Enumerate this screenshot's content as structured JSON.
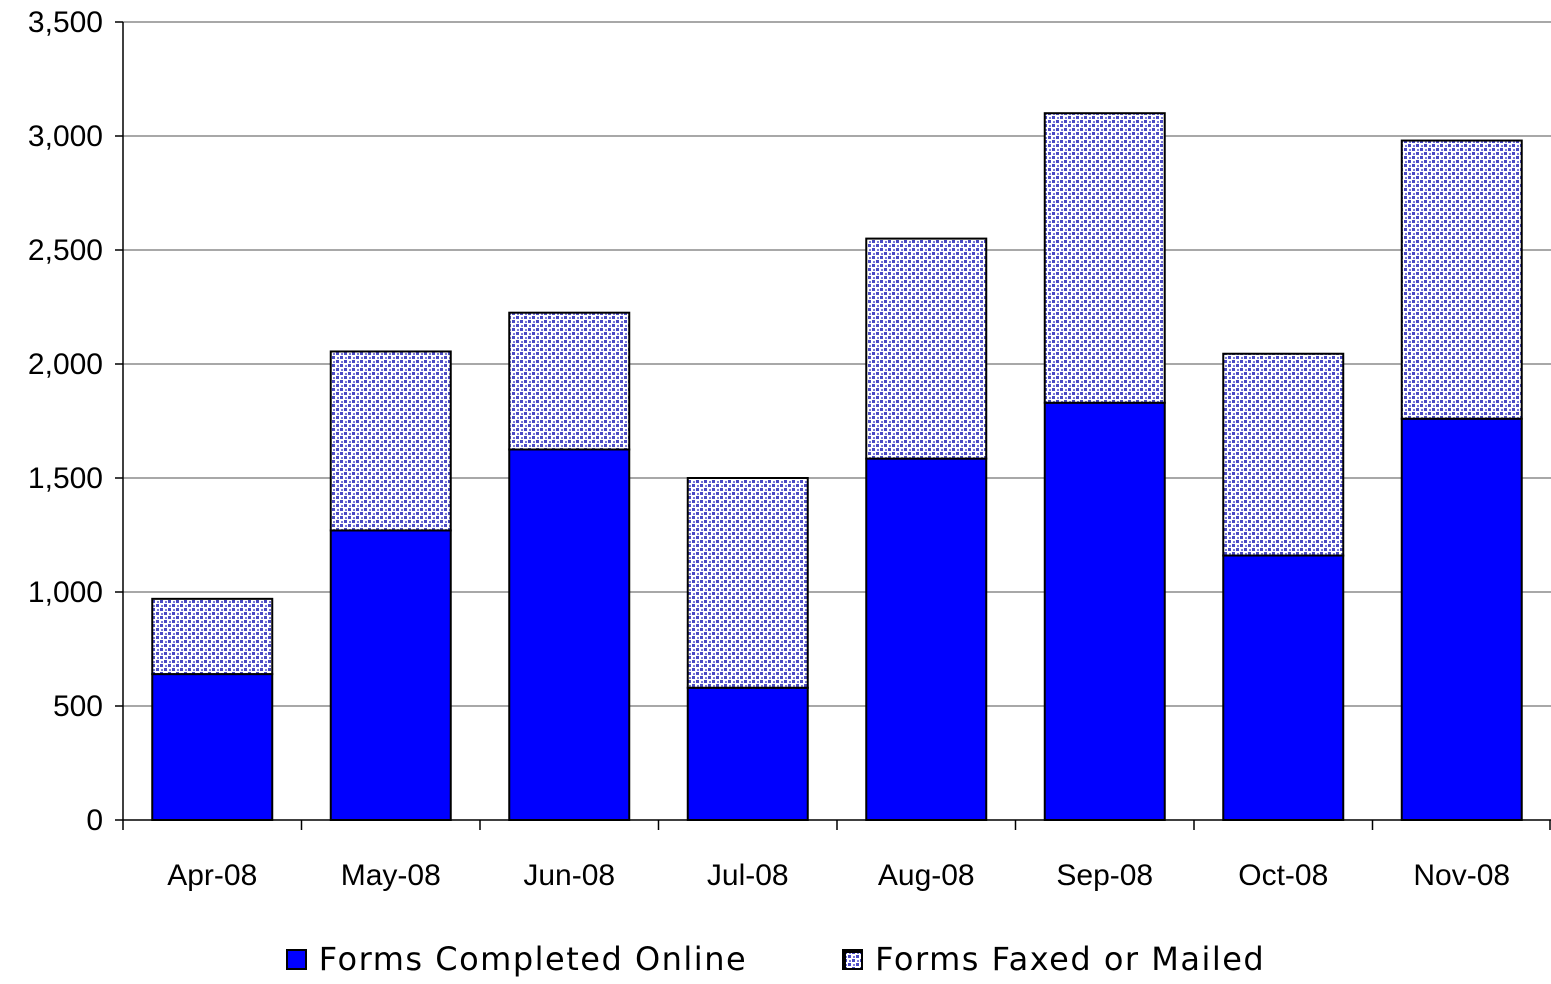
{
  "chart_data": {
    "type": "bar",
    "stacked": true,
    "title": "",
    "xlabel": "",
    "ylabel": "",
    "categories": [
      "Apr-08",
      "May-08",
      "Jun-08",
      "Jul-08",
      "Aug-08",
      "Sep-08",
      "Oct-08",
      "Nov-08"
    ],
    "series": [
      {
        "name": "Forms Completed Online",
        "values": [
          640,
          1270,
          1625,
          580,
          1585,
          1830,
          1160,
          1760
        ],
        "color": "#0000FF",
        "pattern": "solid"
      },
      {
        "name": "Forms Faxed or Mailed",
        "values": [
          330,
          785,
          600,
          920,
          965,
          1270,
          885,
          1220
        ],
        "color": "#5050C8",
        "pattern": "dotted"
      }
    ],
    "ylim": [
      0,
      3500
    ],
    "yticks": [
      "0",
      "500",
      "1,000",
      "1,500",
      "2,000",
      "2,500",
      "3,000",
      "3,500"
    ],
    "grid": true,
    "legend_position": "bottom"
  }
}
